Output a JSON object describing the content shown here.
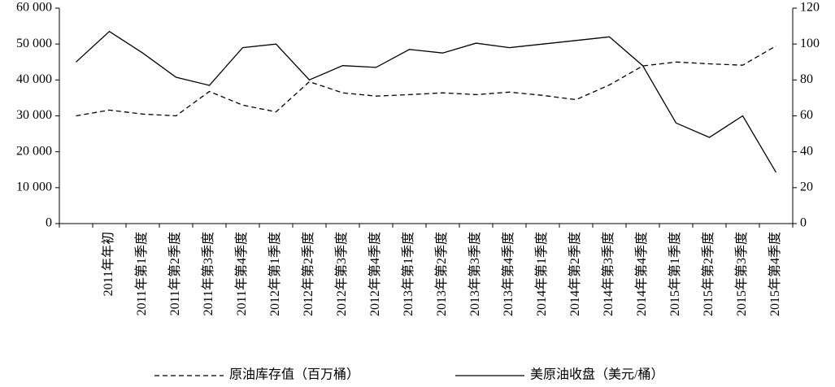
{
  "chart_data": {
    "type": "line",
    "categories": [
      null,
      "2011年年初",
      "2011年第1季度",
      "2011年第2季度",
      "2011年第3季度",
      "2011年第4季度",
      "2012年第1季度",
      "2012年第2季度",
      "2012年第3季度",
      "2012年第4季度",
      "2013年第1季度",
      "2013年第2季度",
      "2013年第3季度",
      "2013年第4季度",
      "2014年第1季度",
      "2014年第2季度",
      "2014年第3季度",
      "2014年第4季度",
      "2015年第1季度",
      "2015年第2季度",
      "2015年第3季度",
      "2015年第4季度"
    ],
    "series": [
      {
        "name": "原油库存值（百万桶）",
        "color": "#000000",
        "line_style": "dashed",
        "axis": "y",
        "values": [
          30000,
          31600,
          30500,
          30000,
          36800,
          33000,
          31100,
          39500,
          36400,
          35500,
          35900,
          36400,
          35900,
          36600,
          35700,
          34500,
          38600,
          43900,
          45000,
          44500,
          44100,
          49500
        ]
      },
      {
        "name": "美原油收盘（美元/桶）",
        "color": "#000000",
        "line_style": "solid",
        "axis": "y2",
        "values": [
          90,
          107,
          95,
          81.5,
          77,
          98,
          100,
          80,
          88,
          87,
          97,
          95,
          100.5,
          98,
          100,
          102,
          104,
          88,
          56,
          48,
          60,
          28.5
        ]
      }
    ],
    "ylim": [
      0,
      60000
    ],
    "yticks": [
      0,
      {
        "value": 10000,
        "label": "10 000"
      },
      {
        "value": 20000,
        "label": "20 000"
      },
      {
        "value": 30000,
        "label": "30 000"
      },
      {
        "value": 40000,
        "label": "40 000"
      },
      {
        "value": 50000,
        "label": "50 000"
      },
      {
        "value": 60000,
        "label": "60 000"
      }
    ],
    "y2lim": [
      0,
      120
    ],
    "y2ticks": [
      0,
      20,
      40,
      60,
      80,
      100,
      120
    ],
    "grid": false,
    "legend": "bottom"
  }
}
